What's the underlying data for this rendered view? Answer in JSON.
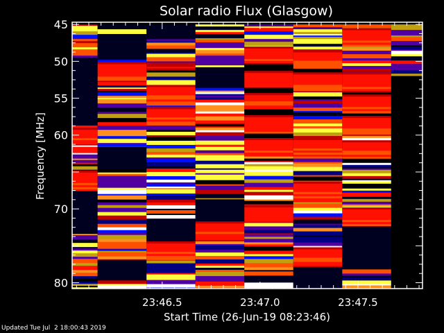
{
  "chart_data": {
    "type": "heatmap",
    "title": "Solar radio Flux (Glasgow)",
    "xlabel": "Start Time (26-Jun-19 08:23:46)",
    "ylabel": "Frequency [MHz]",
    "x_tick_labels": [
      "23:46.5",
      "23:47.0",
      "23:47.5"
    ],
    "x_ticks_seconds": [
      46.5,
      47.0,
      47.5
    ],
    "xlim_seconds": [
      46.04,
      47.83
    ],
    "y_tick_labels": [
      "45",
      "50",
      "55",
      "60",
      "70",
      "80"
    ],
    "y_ticks": [
      45,
      50,
      55,
      60,
      70,
      80
    ],
    "ylim": [
      44.7,
      80.8
    ],
    "y_axis_inverted": true,
    "colormap": [
      "#000020",
      "#000080",
      "#0010ff",
      "#5000a0",
      "#c00000",
      "#ff1000",
      "#ff5000",
      "#ff9020",
      "#c0a010",
      "#ffff40",
      "#ffffff"
    ],
    "columns": [
      {
        "t_start": 46.04,
        "t_end": 46.17,
        "bands": [
          [
            45,
            49.5,
            "mixed"
          ],
          [
            49.5,
            58.7,
            "low"
          ],
          [
            58.7,
            59,
            "mixed"
          ],
          [
            59,
            61.4,
            "high"
          ],
          [
            61.4,
            64.8,
            "mixed"
          ],
          [
            64.8,
            67.6,
            "high"
          ],
          [
            67.6,
            73.2,
            "low"
          ],
          [
            73.2,
            80.8,
            "mixed"
          ]
        ]
      },
      {
        "t_start": 46.17,
        "t_end": 46.42,
        "bands": [
          [
            45,
            46.3,
            "mixed"
          ],
          [
            46.3,
            49.8,
            "low"
          ],
          [
            49.8,
            50.1,
            "mixed"
          ],
          [
            50.1,
            52.8,
            "high"
          ],
          [
            52.8,
            61.6,
            "mixed"
          ],
          [
            61.6,
            64.6,
            "low"
          ],
          [
            64.6,
            76.9,
            "mixed"
          ],
          [
            76.9,
            79.7,
            "low"
          ],
          [
            79.7,
            80.8,
            "mixed"
          ]
        ]
      },
      {
        "t_start": 46.42,
        "t_end": 46.67,
        "bands": [
          [
            45,
            47,
            "low"
          ],
          [
            47,
            53.2,
            "mixed"
          ],
          [
            53.2,
            56,
            "high"
          ],
          [
            56,
            56.2,
            "mixed"
          ],
          [
            56.2,
            58.7,
            "high"
          ],
          [
            58.7,
            71.4,
            "mixed"
          ],
          [
            71.4,
            74.4,
            "low"
          ],
          [
            74.4,
            77,
            "high"
          ],
          [
            77,
            80.8,
            "mixed"
          ]
        ]
      },
      {
        "t_start": 46.67,
        "t_end": 46.92,
        "bands": [
          [
            45,
            50.8,
            "mixed"
          ],
          [
            50.8,
            53.6,
            "low"
          ],
          [
            53.6,
            68.7,
            "mixed"
          ],
          [
            68.7,
            71.7,
            "low"
          ],
          [
            71.7,
            74.4,
            "high"
          ],
          [
            74.4,
            80.8,
            "mixed"
          ]
        ]
      },
      {
        "t_start": 46.92,
        "t_end": 47.17,
        "bands": [
          [
            45,
            48,
            "mixed"
          ],
          [
            48,
            50.4,
            "high"
          ],
          [
            50.4,
            51.3,
            "none"
          ],
          [
            51.3,
            53.6,
            "high"
          ],
          [
            53.6,
            54.3,
            "none"
          ],
          [
            54.3,
            56.5,
            "high"
          ],
          [
            56.5,
            57.3,
            "none"
          ],
          [
            57.3,
            59.8,
            "high"
          ],
          [
            59.8,
            60.4,
            "none"
          ],
          [
            60.4,
            62.9,
            "high"
          ],
          [
            62.9,
            69.5,
            "mixed"
          ],
          [
            69.5,
            71.9,
            "high"
          ],
          [
            71.9,
            80.8,
            "mixed"
          ]
        ]
      },
      {
        "t_start": 47.17,
        "t_end": 47.42,
        "bands": [
          [
            45,
            48.5,
            "mixed"
          ],
          [
            48.5,
            51,
            "high"
          ],
          [
            51,
            51.5,
            "none"
          ],
          [
            51.5,
            54.2,
            "high"
          ],
          [
            54.2,
            60.4,
            "mixed"
          ],
          [
            60.4,
            62.9,
            "high"
          ],
          [
            62.9,
            66.3,
            "mixed"
          ],
          [
            66.3,
            69.1,
            "high"
          ],
          [
            69.1,
            75.2,
            "mixed"
          ],
          [
            75.2,
            77.9,
            "high"
          ],
          [
            77.9,
            80.8,
            "low"
          ]
        ]
      },
      {
        "t_start": 47.42,
        "t_end": 47.67,
        "bands": [
          [
            45,
            45.5,
            "mixed"
          ],
          [
            45.5,
            48,
            "high"
          ],
          [
            48,
            51.5,
            "mixed"
          ],
          [
            51.5,
            54.2,
            "high"
          ],
          [
            54.2,
            54.5,
            "none"
          ],
          [
            54.5,
            57.1,
            "high"
          ],
          [
            57.1,
            57.4,
            "none"
          ],
          [
            57.4,
            60.1,
            "high"
          ],
          [
            60.1,
            60.7,
            "mixed"
          ],
          [
            60.7,
            63.2,
            "high"
          ],
          [
            63.2,
            69.8,
            "mixed"
          ],
          [
            69.8,
            72.4,
            "high"
          ],
          [
            72.4,
            78.2,
            "low"
          ],
          [
            78.2,
            80.8,
            "mixed"
          ]
        ]
      },
      {
        "t_start": 47.67,
        "t_end": 47.83,
        "bands": [
          [
            45,
            52,
            "mixed"
          ],
          [
            52,
            80.8,
            "none"
          ]
        ]
      }
    ]
  },
  "footer": {
    "updated": "Updated Tue Jul  2 18:00:43 2019"
  }
}
